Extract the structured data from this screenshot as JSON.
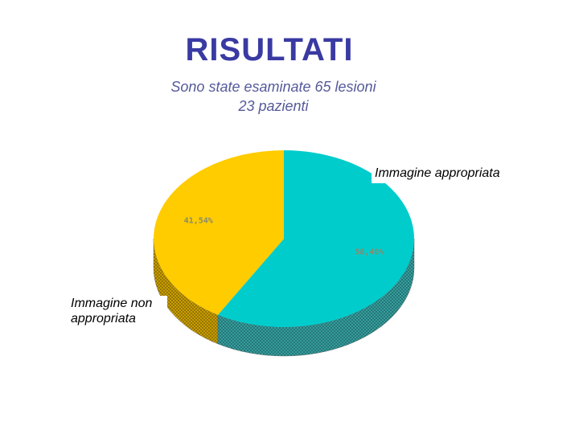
{
  "slide": {
    "title": "RISULTATI",
    "subtitle_line1": "Sono state esaminate 65 lesioni",
    "subtitle_line2": "23 pazienti"
  },
  "colors": {
    "title": "#3a3aa3",
    "subtitle": "#555a9a",
    "appropriata": "#00cccc",
    "non_appropriata": "#ffcc00",
    "appropriata_side": "#2a9a9a",
    "non_appropriata_side": "#c8a000",
    "data_label": "#8a8a6a"
  },
  "chart_data": {
    "type": "pie",
    "style": "3d",
    "series": [
      {
        "name": "Immagine appropriata",
        "value": 58.46,
        "label": "58,46%"
      },
      {
        "name": "Immagine non appropriata",
        "value": 41.54,
        "label": "41,54%"
      }
    ],
    "legend_labels": [
      "Immagine appropriata",
      "Immagine non appropriata"
    ]
  }
}
